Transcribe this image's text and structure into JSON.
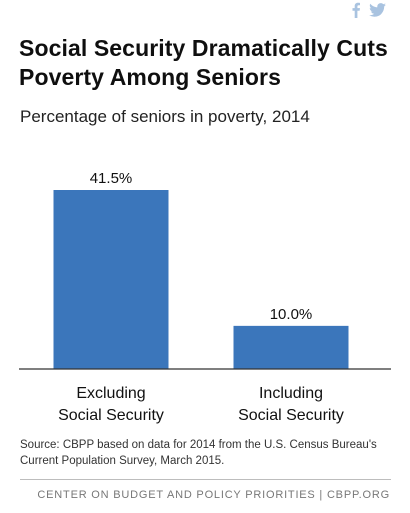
{
  "title": "Social Security Dramatically Cuts Poverty Among Seniors",
  "subtitle": "Percentage of seniors in poverty, 2014",
  "source": "Source: CBPP based on data for 2014 from the U.S. Census Bureau's Current Population Survey, March 2015.",
  "footer": "CENTER ON BUDGET AND POLICY PRIORITIES | CBPP.ORG",
  "share_icons": [
    "facebook-icon",
    "twitter-icon"
  ],
  "colors": {
    "bar": "#3b76bb",
    "axis": "#333333",
    "share": "#a9c3e0",
    "text": "#111111"
  },
  "chart_data": {
    "type": "bar",
    "title": "",
    "xlabel": "",
    "ylabel": "",
    "ylim": [
      0,
      45
    ],
    "grid": false,
    "categories": [
      [
        "Excluding",
        "Social Security"
      ],
      [
        "Including",
        "Social Security"
      ]
    ],
    "values": [
      41.5,
      10.0
    ],
    "data_labels": [
      "41.5%",
      "10.0%"
    ]
  }
}
